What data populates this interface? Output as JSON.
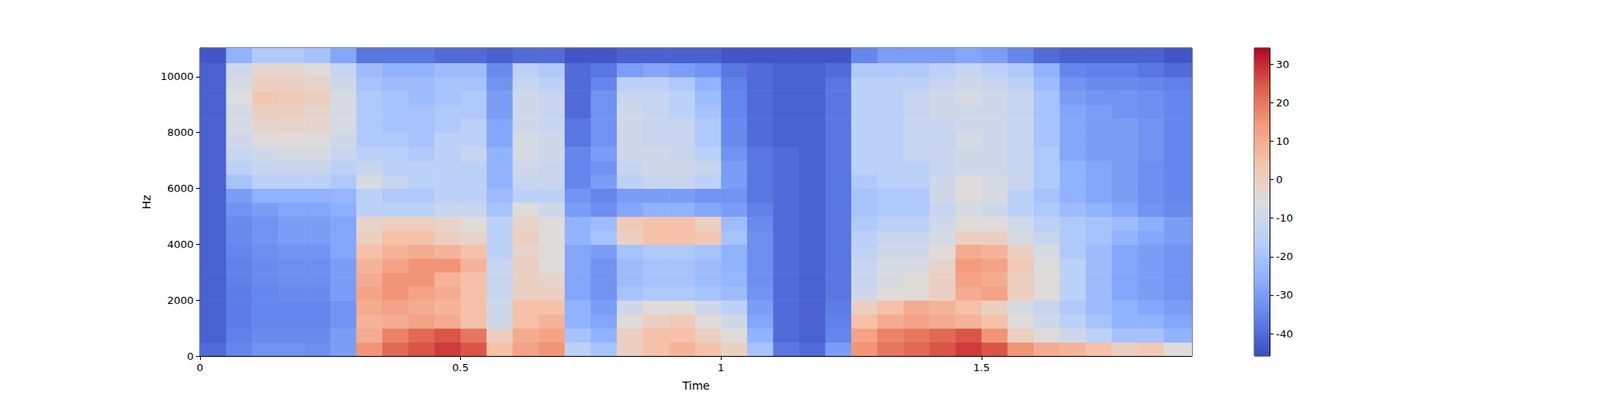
{
  "chart_data": {
    "type": "heatmap",
    "xlabel": "Time",
    "ylabel": "Hz",
    "xlim": [
      0,
      1.904
    ],
    "xticks": [
      0,
      0.5,
      1,
      1.5
    ],
    "ylim": [
      0,
      11025
    ],
    "yticks": [
      0,
      2000,
      4000,
      6000,
      8000,
      10000
    ],
    "x_edges": [
      0,
      0.05,
      0.1,
      0.15,
      0.2,
      0.25,
      0.3,
      0.35,
      0.4,
      0.45,
      0.5,
      0.55,
      0.6,
      0.65,
      0.7,
      0.75,
      0.8,
      0.85,
      0.9,
      0.95,
      1.0,
      1.05,
      1.1,
      1.15,
      1.2,
      1.25,
      1.3,
      1.35,
      1.4,
      1.45,
      1.5,
      1.55,
      1.6,
      1.65,
      1.7,
      1.75,
      1.8,
      1.85,
      1.904
    ],
    "y_edges": [
      0,
      500,
      1000,
      1500,
      2000,
      2500,
      3000,
      3500,
      4000,
      4500,
      5000,
      5500,
      6000,
      6500,
      7000,
      7500,
      8000,
      8500,
      9000,
      9500,
      10000,
      10500,
      11025
    ],
    "cells": [
      [
        -40,
        -35,
        -32,
        -32,
        -33,
        -30,
        15,
        22,
        25,
        28,
        25,
        5,
        12,
        15,
        -15,
        -20,
        0,
        5,
        8,
        5,
        0,
        -20,
        -38,
        -40,
        -30,
        15,
        20,
        22,
        25,
        28,
        25,
        15,
        10,
        8,
        5,
        0,
        2,
        -5
      ],
      [
        -42,
        -36,
        -34,
        -34,
        -34,
        -30,
        10,
        18,
        22,
        25,
        20,
        0,
        10,
        12,
        -20,
        -25,
        0,
        5,
        5,
        0,
        -5,
        -25,
        -40,
        -42,
        -35,
        12,
        18,
        20,
        22,
        25,
        15,
        0,
        -5,
        -10,
        -15,
        -20,
        -20,
        -25
      ],
      [
        -42,
        -37,
        -35,
        -35,
        -35,
        -32,
        8,
        10,
        12,
        10,
        5,
        -10,
        5,
        8,
        -25,
        -28,
        -5,
        0,
        2,
        -5,
        -10,
        -28,
        -40,
        -42,
        -36,
        5,
        10,
        12,
        10,
        8,
        5,
        -5,
        -10,
        -15,
        -20,
        -25,
        -25,
        -28
      ],
      [
        -42,
        -37,
        -35,
        -35,
        -35,
        -32,
        10,
        12,
        10,
        8,
        5,
        -10,
        5,
        5,
        -25,
        -30,
        -10,
        -5,
        -5,
        -10,
        -15,
        -30,
        -40,
        -42,
        -37,
        0,
        5,
        10,
        8,
        5,
        0,
        -8,
        -12,
        -18,
        -22,
        -25,
        -28,
        -30
      ],
      [
        -42,
        -37,
        -35,
        -34,
        -34,
        -30,
        12,
        15,
        12,
        10,
        5,
        -12,
        0,
        0,
        -28,
        -32,
        -20,
        -18,
        -18,
        -20,
        -22,
        -32,
        -40,
        -42,
        -38,
        -10,
        -5,
        -5,
        0,
        10,
        12,
        0,
        -5,
        -15,
        -22,
        -28,
        -30,
        -32
      ],
      [
        -42,
        -36,
        -34,
        -33,
        -33,
        -30,
        10,
        15,
        15,
        8,
        5,
        -12,
        0,
        -2,
        -28,
        -32,
        -22,
        -20,
        -20,
        -22,
        -24,
        -33,
        -40,
        -42,
        -38,
        -12,
        -8,
        -5,
        0,
        12,
        10,
        0,
        -5,
        -15,
        -22,
        -28,
        -30,
        -32
      ],
      [
        -42,
        -36,
        -34,
        -33,
        -33,
        -30,
        8,
        12,
        15,
        15,
        8,
        -12,
        0,
        -5,
        -28,
        -32,
        -22,
        -20,
        -20,
        -22,
        -25,
        -33,
        -40,
        -42,
        -38,
        -12,
        -8,
        -8,
        -2,
        14,
        12,
        2,
        -5,
        -15,
        -22,
        -28,
        -30,
        -32
      ],
      [
        -42,
        -35,
        -33,
        -32,
        -32,
        -28,
        5,
        8,
        10,
        8,
        5,
        -15,
        -2,
        -5,
        -28,
        -30,
        -20,
        -18,
        -18,
        -20,
        -25,
        -33,
        -40,
        -42,
        -38,
        -14,
        -10,
        -10,
        -5,
        10,
        8,
        0,
        -8,
        -18,
        -22,
        -28,
        -30,
        -32
      ],
      [
        -42,
        -34,
        -32,
        -30,
        -30,
        -28,
        0,
        5,
        5,
        0,
        -2,
        -15,
        0,
        -5,
        -25,
        -20,
        0,
        5,
        5,
        3,
        -20,
        -33,
        -40,
        -42,
        -38,
        -15,
        -12,
        -12,
        -8,
        0,
        0,
        -8,
        -12,
        -18,
        -20,
        -25,
        -28,
        -30
      ],
      [
        -42,
        -34,
        -32,
        -30,
        -30,
        -28,
        -2,
        0,
        0,
        -2,
        -5,
        -15,
        -2,
        -5,
        -25,
        -22,
        2,
        5,
        5,
        0,
        -22,
        -34,
        -40,
        -42,
        -38,
        -18,
        -15,
        -15,
        -10,
        -5,
        -5,
        -10,
        -15,
        -18,
        -20,
        -22,
        -26,
        -30
      ],
      [
        -42,
        -32,
        -30,
        -28,
        -28,
        -26,
        -15,
        -15,
        -15,
        -12,
        -12,
        -20,
        -5,
        -10,
        -30,
        -33,
        -28,
        -25,
        -25,
        -28,
        -30,
        -36,
        -40,
        -42,
        -38,
        -20,
        -18,
        -18,
        -12,
        -8,
        -10,
        -15,
        -18,
        -22,
        -25,
        -28,
        -32,
        -34
      ],
      [
        -42,
        -30,
        -25,
        -25,
        -25,
        -24,
        -15,
        -18,
        -18,
        -15,
        -15,
        -22,
        -15,
        -15,
        -32,
        -35,
        -30,
        -30,
        -30,
        -32,
        -32,
        -38,
        -40,
        -42,
        -38,
        -20,
        -18,
        -18,
        -10,
        -5,
        -8,
        -15,
        -20,
        -25,
        -28,
        -30,
        -33,
        -35
      ],
      [
        -42,
        -20,
        -15,
        -15,
        -15,
        -18,
        -8,
        -12,
        -15,
        -15,
        -15,
        -25,
        -12,
        -12,
        -35,
        -30,
        -15,
        -12,
        -12,
        -15,
        -30,
        -38,
        -40,
        -42,
        -38,
        -18,
        -15,
        -15,
        -10,
        -5,
        -8,
        -12,
        -18,
        -25,
        -28,
        -30,
        -33,
        -35
      ],
      [
        -42,
        -15,
        -12,
        -12,
        -12,
        -15,
        -12,
        -15,
        -15,
        -15,
        -15,
        -25,
        -10,
        -12,
        -35,
        -32,
        -12,
        -10,
        -10,
        -12,
        -30,
        -38,
        -40,
        -42,
        -38,
        -15,
        -15,
        -15,
        -12,
        -10,
        -10,
        -12,
        -18,
        -25,
        -28,
        -30,
        -33,
        -35
      ],
      [
        -42,
        -12,
        -10,
        -8,
        -8,
        -12,
        -15,
        -15,
        -18,
        -15,
        -12,
        -25,
        -8,
        -10,
        -35,
        -30,
        -10,
        -10,
        -12,
        -15,
        -32,
        -38,
        -40,
        -42,
        -38,
        -15,
        -15,
        -12,
        -12,
        -10,
        -10,
        -12,
        -18,
        -28,
        -30,
        -30,
        -32,
        -35
      ],
      [
        -42,
        -10,
        -5,
        -5,
        -5,
        -10,
        -18,
        -18,
        -20,
        -15,
        -15,
        -28,
        -8,
        -10,
        -38,
        -32,
        -10,
        -12,
        -12,
        -18,
        -34,
        -40,
        -42,
        -42,
        -38,
        -15,
        -15,
        -12,
        -12,
        -8,
        -10,
        -12,
        -20,
        -28,
        -30,
        -30,
        -32,
        -35
      ],
      [
        -42,
        -8,
        -3,
        -2,
        -3,
        -8,
        -18,
        -20,
        -20,
        -18,
        -15,
        -28,
        -10,
        -12,
        -38,
        -32,
        -10,
        -12,
        -12,
        -18,
        -34,
        -40,
        -42,
        -42,
        -38,
        -15,
        -15,
        -12,
        -12,
        -10,
        -10,
        -12,
        -20,
        -28,
        -30,
        -30,
        -32,
        -35
      ],
      [
        -42,
        -8,
        0,
        0,
        -2,
        -8,
        -18,
        -20,
        -20,
        -18,
        -18,
        -30,
        -10,
        -12,
        -40,
        -32,
        -10,
        -12,
        -15,
        -20,
        -35,
        -40,
        -42,
        -42,
        -38,
        -15,
        -15,
        -12,
        -10,
        -10,
        -10,
        -12,
        -20,
        -28,
        -30,
        -32,
        -33,
        -35
      ],
      [
        -42,
        -6,
        3,
        2,
        0,
        -8,
        -18,
        -20,
        -22,
        -20,
        -18,
        -30,
        -10,
        -12,
        -40,
        -32,
        -12,
        -12,
        -15,
        -22,
        -35,
        -40,
        -42,
        -42,
        -38,
        -15,
        -15,
        -12,
        -10,
        -8,
        -10,
        -12,
        -20,
        -30,
        -32,
        -32,
        -33,
        -35
      ],
      [
        -42,
        -8,
        0,
        0,
        -2,
        -10,
        -20,
        -22,
        -22,
        -20,
        -20,
        -32,
        -12,
        -15,
        -40,
        -35,
        -15,
        -15,
        -18,
        -25,
        -36,
        -40,
        -42,
        -42,
        -38,
        -15,
        -15,
        -15,
        -12,
        -10,
        -12,
        -15,
        -22,
        -32,
        -34,
        -34,
        -35,
        -36
      ],
      [
        -42,
        -10,
        -3,
        -3,
        -5,
        -12,
        -22,
        -25,
        -25,
        -22,
        -22,
        -34,
        -15,
        -18,
        -40,
        -38,
        -30,
        -28,
        -30,
        -32,
        -38,
        -40,
        -42,
        -42,
        -40,
        -18,
        -18,
        -18,
        -15,
        -12,
        -15,
        -18,
        -25,
        -35,
        -36,
        -36,
        -38,
        -40
      ],
      [
        -44,
        -25,
        -18,
        -18,
        -20,
        -28,
        -38,
        -38,
        -38,
        -40,
        -40,
        -42,
        -40,
        -40,
        -44,
        -44,
        -42,
        -42,
        -42,
        -42,
        -44,
        -44,
        -44,
        -44,
        -44,
        -35,
        -30,
        -30,
        -30,
        -28,
        -30,
        -35,
        -40,
        -42,
        -42,
        -42,
        -42,
        -44
      ]
    ],
    "colorbar": {
      "range": [
        -45.8,
        34.2
      ],
      "ticks": [
        -40,
        -30,
        -20,
        -10,
        0,
        10,
        20,
        30
      ]
    }
  }
}
